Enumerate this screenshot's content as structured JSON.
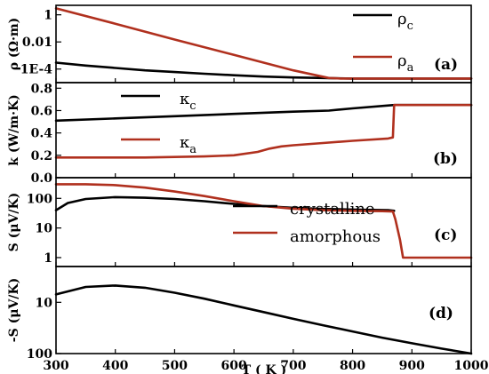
{
  "colors": {
    "crystalline": "#000000",
    "amorphous": "#b0301e"
  },
  "chart_data": [
    {
      "type": "line",
      "panel": "(a)",
      "ylabel": "ρ (Ω·m)",
      "yscale": "log",
      "xlim": [
        300,
        1000
      ],
      "ylim": [
        1e-05,
        5
      ],
      "yticks": [
        {
          "v": 1,
          "label": "1"
        },
        {
          "v": 0.01,
          "label": "0.01"
        },
        {
          "v": 0.0001,
          "label": "1E-4"
        }
      ],
      "legend": [
        {
          "sym": "ρ",
          "sub": "c",
          "key": "crystalline"
        },
        {
          "sym": "ρ",
          "sub": "a",
          "key": "amorphous"
        }
      ],
      "series": [
        {
          "key": "crystalline",
          "x": [
            300,
            350,
            400,
            450,
            500,
            550,
            600,
            650,
            700,
            750,
            800,
            1000
          ],
          "y": [
            0.0003,
            0.00018,
            0.00012,
            8e-05,
            6e-05,
            4.5e-05,
            3.5e-05,
            2.8e-05,
            2.4e-05,
            2.2e-05,
            2e-05,
            2e-05
          ]
        },
        {
          "key": "amorphous",
          "x": [
            300,
            400,
            500,
            600,
            700,
            760,
            780,
            1000
          ],
          "y": [
            3,
            0.22,
            0.015,
            0.0011,
            8e-05,
            2.2e-05,
            2e-05,
            2e-05
          ]
        }
      ]
    },
    {
      "type": "line",
      "panel": "(b)",
      "ylabel": "k (W/m·K)",
      "yscale": "linear",
      "xlim": [
        300,
        1000
      ],
      "ylim": [
        0,
        0.85
      ],
      "yticks": [
        {
          "v": 0.8,
          "label": "0.8"
        },
        {
          "v": 0.6,
          "label": "0.6"
        },
        {
          "v": 0.4,
          "label": "0.4"
        },
        {
          "v": 0.2,
          "label": "0.2"
        },
        {
          "v": 0.0,
          "label": "0.0"
        }
      ],
      "legend": [
        {
          "sym": "κ",
          "sub": "c",
          "key": "crystalline"
        },
        {
          "sym": "κ",
          "sub": "a",
          "key": "amorphous"
        }
      ],
      "series": [
        {
          "key": "crystalline",
          "x": [
            300,
            400,
            500,
            600,
            700,
            760,
            800,
            870,
            1000
          ],
          "y": [
            0.51,
            0.53,
            0.55,
            0.57,
            0.59,
            0.6,
            0.62,
            0.65,
            0.65
          ]
        },
        {
          "key": "amorphous",
          "x": [
            300,
            450,
            550,
            600,
            640,
            660,
            680,
            700,
            750,
            800,
            860,
            868,
            870,
            1000
          ],
          "y": [
            0.18,
            0.18,
            0.19,
            0.2,
            0.23,
            0.26,
            0.28,
            0.29,
            0.31,
            0.33,
            0.35,
            0.36,
            0.65,
            0.65
          ]
        }
      ]
    },
    {
      "type": "line",
      "panel": "(c)",
      "ylabel": "S (μV/K)",
      "yscale": "log",
      "xlim": [
        300,
        1000
      ],
      "ylim": [
        0.5,
        500
      ],
      "yticks": [
        {
          "v": 100,
          "label": "100"
        },
        {
          "v": 10,
          "label": "10"
        },
        {
          "v": 1,
          "label": "1"
        }
      ],
      "legend": [
        {
          "text": "crystalline",
          "key": "crystalline"
        },
        {
          "text": "amorphous",
          "key": "amorphous"
        }
      ],
      "series": [
        {
          "key": "crystalline",
          "x": [
            300,
            320,
            350,
            400,
            450,
            500,
            550,
            600,
            650,
            700,
            750,
            800,
            860,
            870
          ],
          "y": [
            40,
            70,
            95,
            110,
            105,
            95,
            80,
            65,
            55,
            48,
            44,
            42,
            40,
            38
          ]
        },
        {
          "key": "amorphous",
          "x": [
            300,
            350,
            400,
            450,
            500,
            550,
            600,
            650,
            700,
            750,
            800,
            850,
            868,
            872,
            880,
            885,
            890,
            1000
          ],
          "y": [
            300,
            300,
            280,
            230,
            170,
            120,
            80,
            55,
            45,
            40,
            38,
            37,
            36,
            20,
            4,
            1,
            1,
            1
          ]
        }
      ]
    },
    {
      "type": "line",
      "panel": "(d)",
      "ylabel": "-S (μV/K)",
      "yscale": "log-reversed",
      "xlim": [
        300,
        1000
      ],
      "ylim": [
        2,
        100
      ],
      "xlabel": "T ( K )",
      "xticks": [
        300,
        400,
        500,
        600,
        700,
        800,
        900,
        1000
      ],
      "yticks": [
        {
          "v": 10,
          "label": "10"
        },
        {
          "v": 100,
          "label": "100"
        }
      ],
      "series": [
        {
          "key": "crystalline",
          "x": [
            300,
            350,
            400,
            450,
            500,
            550,
            600,
            650,
            700,
            750,
            800,
            850,
            900,
            950,
            1000
          ],
          "y": [
            7,
            5,
            4.7,
            5.2,
            6.5,
            8.5,
            11.5,
            15.5,
            21,
            28,
            37,
            49,
            63,
            80,
            100
          ]
        }
      ]
    }
  ]
}
